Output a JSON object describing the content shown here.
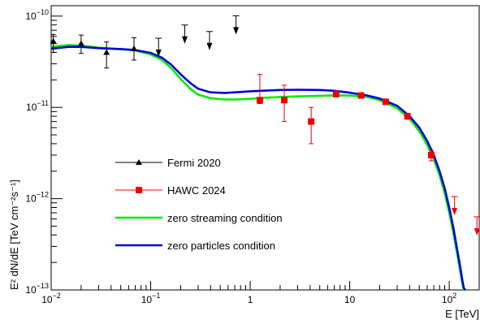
{
  "chart_data": {
    "type": "scatter",
    "xlabel": "E [TeV]",
    "ylabel": "E² dN/dE [TeV cm⁻²s⁻¹]",
    "xscale": "log",
    "yscale": "log",
    "xlim": [
      0.01,
      200
    ],
    "ylim": [
      1e-13,
      1.3e-10
    ],
    "grid": false,
    "legend_position": "left-center",
    "x_ticks": [
      {
        "value": 0.01,
        "base": "10",
        "exp": "−2"
      },
      {
        "value": 0.1,
        "base": "10",
        "exp": "−1"
      },
      {
        "value": 1,
        "base": "1",
        "exp": ""
      },
      {
        "value": 10,
        "base": "10",
        "exp": ""
      },
      {
        "value": 100,
        "base": "10",
        "exp": "2"
      }
    ],
    "y_ticks": [
      {
        "value": 1e-13,
        "base": "10",
        "exp": "−13"
      },
      {
        "value": 1e-12,
        "base": "10",
        "exp": "−12"
      },
      {
        "value": 1e-11,
        "base": "10",
        "exp": "−11"
      },
      {
        "value": 1e-10,
        "base": "10",
        "exp": "−10"
      }
    ],
    "series": [
      {
        "name": "Fermi 2020",
        "kind": "points",
        "marker": "triangle",
        "color": "#000000",
        "points": [
          {
            "x": 0.0105,
            "y": 5.3e-11,
            "ylo": 4e-11,
            "yhi": 6.3e-11
          },
          {
            "x": 0.02,
            "y": 5e-11,
            "ylo": 3.9e-11,
            "yhi": 6.2e-11
          },
          {
            "x": 0.036,
            "y": 4e-11,
            "ylo": 2.7e-11,
            "yhi": 5.2e-11
          },
          {
            "x": 0.068,
            "y": 4.4e-11,
            "ylo": 3.3e-11,
            "yhi": 5.8e-11
          }
        ],
        "upper_limits": [
          {
            "x": 0.12,
            "y": 3.8e-11
          },
          {
            "x": 0.22,
            "y": 5.3e-11
          },
          {
            "x": 0.39,
            "y": 4.5e-11
          },
          {
            "x": 0.72,
            "y": 6.7e-11
          }
        ]
      },
      {
        "name": "HAWC 2024",
        "kind": "points",
        "marker": "square",
        "color": "#ee0000",
        "points": [
          {
            "x": 1.25,
            "y": 1.2e-11,
            "ylo": 1.1e-11,
            "yhi": 2.3e-11
          },
          {
            "x": 2.2,
            "y": 1.2e-11,
            "ylo": 7e-12,
            "yhi": 1.75e-11
          },
          {
            "x": 4.1,
            "y": 7e-12,
            "ylo": 4e-12,
            "yhi": 1e-11
          },
          {
            "x": 7.3,
            "y": 1.4e-11,
            "ylo": 1.3e-11,
            "yhi": 1.5e-11
          },
          {
            "x": 13,
            "y": 1.35e-11,
            "ylo": 1.3e-11,
            "yhi": 1.4e-11
          },
          {
            "x": 23,
            "y": 1.15e-11,
            "ylo": 1.1e-11,
            "yhi": 1.2e-11
          },
          {
            "x": 38,
            "y": 8e-12,
            "ylo": 7.4e-12,
            "yhi": 8.6e-12
          },
          {
            "x": 66,
            "y": 3e-12,
            "ylo": 2.6e-12,
            "yhi": 3.4e-12
          }
        ],
        "upper_limits": [
          {
            "x": 113,
            "y": 7e-13
          },
          {
            "x": 190,
            "y": 4.2e-13
          }
        ]
      },
      {
        "name": "zero streaming condition",
        "kind": "line",
        "color": "#00ee00",
        "x": [
          0.01,
          0.015,
          0.02,
          0.03,
          0.05,
          0.07,
          0.1,
          0.13,
          0.16,
          0.2,
          0.25,
          0.3,
          0.4,
          0.55,
          0.7,
          1,
          1.5,
          2,
          3,
          5,
          7,
          10,
          15,
          20,
          30,
          40,
          50,
          60,
          70,
          80,
          90,
          100,
          110,
          120,
          130,
          135,
          140,
          145
        ],
        "y": [
          4.6e-11,
          4.8e-11,
          4.75e-11,
          4.5e-11,
          4.35e-11,
          4.2e-11,
          3.8e-11,
          3.3e-11,
          2.7e-11,
          2.05e-11,
          1.6e-11,
          1.38e-11,
          1.26e-11,
          1.22e-11,
          1.22e-11,
          1.24e-11,
          1.28e-11,
          1.3e-11,
          1.32e-11,
          1.34e-11,
          1.35e-11,
          1.35e-11,
          1.3e-11,
          1.2e-11,
          9.8e-12,
          7.5e-12,
          5.5e-12,
          3.9e-12,
          2.7e-12,
          1.8e-12,
          1.15e-12,
          7e-13,
          4.2e-13,
          2.5e-13,
          1.5e-13,
          1.2e-13,
          1e-13,
          8e-14
        ]
      },
      {
        "name": "zero particles condition",
        "kind": "line",
        "color": "#0000dd",
        "x": [
          0.01,
          0.015,
          0.02,
          0.03,
          0.05,
          0.07,
          0.1,
          0.13,
          0.16,
          0.2,
          0.25,
          0.3,
          0.4,
          0.55,
          0.7,
          1,
          1.5,
          2,
          3,
          5,
          7,
          10,
          15,
          20,
          30,
          40,
          50,
          60,
          70,
          80,
          90,
          100,
          110,
          120,
          130,
          135,
          140,
          145
        ],
        "y": [
          4.4e-11,
          4.6e-11,
          4.6e-11,
          4.45e-11,
          4.35e-11,
          4.25e-11,
          3.95e-11,
          3.5e-11,
          2.95e-11,
          2.3e-11,
          1.85e-11,
          1.6e-11,
          1.46e-11,
          1.44e-11,
          1.46e-11,
          1.5e-11,
          1.53e-11,
          1.55e-11,
          1.56e-11,
          1.55e-11,
          1.52e-11,
          1.45e-11,
          1.35e-11,
          1.25e-11,
          1.04e-11,
          8e-12,
          6e-12,
          4.3e-12,
          3e-12,
          2e-12,
          1.3e-12,
          8e-13,
          4.8e-13,
          2.8e-13,
          1.7e-13,
          1.3e-13,
          1.05e-13,
          8.5e-14
        ]
      }
    ]
  }
}
